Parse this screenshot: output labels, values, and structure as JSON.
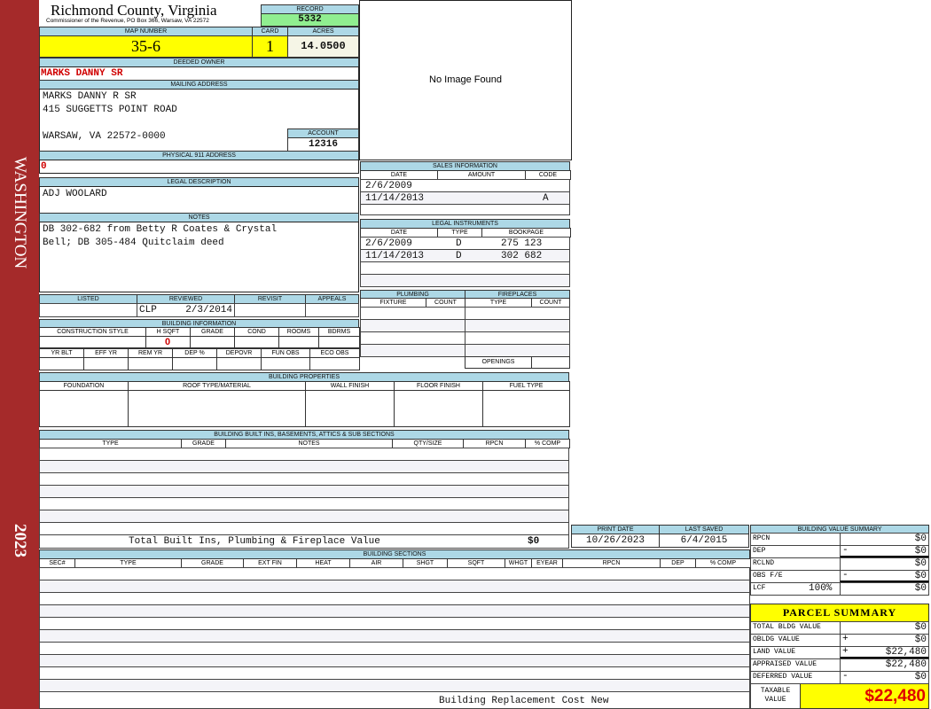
{
  "sidebar": {
    "district": "WASHINGTON",
    "year": "2023"
  },
  "header": {
    "title": "Richmond County, Virginia",
    "subtitle": "Commissioner of the Revenue, PO Box 366, Warsaw, VA 22572",
    "record_label": "RECORD",
    "record": "5332"
  },
  "parcel": {
    "map_label": "MAP NUMBER",
    "map": "35-6",
    "card_label": "CARD",
    "card": "1",
    "acres_label": "ACRES",
    "acres": "14.0500"
  },
  "owner": {
    "label": "DEEDED OWNER",
    "value": "MARKS DANNY SR"
  },
  "mailing": {
    "label": "MAILING ADDRESS",
    "lines": [
      "MARKS DANNY R SR",
      "415 SUGGETTS POINT ROAD",
      "WARSAW, VA 22572-0000"
    ],
    "account_label": "ACCOUNT",
    "account": "12316"
  },
  "physical": {
    "label": "PHYSICAL 911 ADDRESS",
    "value": "0"
  },
  "legal": {
    "label": "LEGAL DESCRIPTION",
    "value": "ADJ WOOLARD"
  },
  "notes": {
    "label": "NOTES",
    "lines": [
      "DB 302-682 from Betty R Coates & Crystal",
      "Bell; DB 305-484 Quitclaim deed"
    ]
  },
  "image": {
    "text": "No Image Found"
  },
  "review": {
    "headers": [
      "LISTED",
      "REVIEWED",
      "REVISIT",
      "APPEALS"
    ],
    "reviewed_by": "CLP",
    "reviewed_date": "2/3/2014"
  },
  "building_info": {
    "label": "BUILDING INFORMATION",
    "headers1": [
      "CONSTRUCTION STYLE",
      "H SQFT",
      "GRADE",
      "COND",
      "ROOMS",
      "BDRMS"
    ],
    "hsqft": "0",
    "headers2": [
      "YR BLT",
      "EFF YR",
      "REM YR",
      "DEP %",
      "DEPOVR",
      "FUN OBS",
      "ECO OBS"
    ]
  },
  "sales": {
    "label": "SALES INFORMATION",
    "headers": [
      "DATE",
      "AMOUNT",
      "CODE"
    ],
    "rows": [
      {
        "date": "2/6/2009",
        "amount": "",
        "code": ""
      },
      {
        "date": "11/14/2013",
        "amount": "",
        "code": "A"
      }
    ]
  },
  "instruments": {
    "label": "LEGAL INSTRUMENTS",
    "headers": [
      "DATE",
      "TYPE",
      "BOOKPAGE"
    ],
    "rows": [
      {
        "date": "2/6/2009",
        "type": "D",
        "bookpage": "275 123"
      },
      {
        "date": "11/14/2013",
        "type": "D",
        "bookpage": "302 682"
      }
    ]
  },
  "plumbing": {
    "label": "PLUMBING",
    "headers": [
      "FIXTURE",
      "COUNT"
    ]
  },
  "fireplaces": {
    "label": "FIREPLACES",
    "headers": [
      "TYPE",
      "COUNT"
    ],
    "openings_label": "OPENINGS"
  },
  "properties": {
    "label": "BUILDING PROPERTIES",
    "headers": [
      "FOUNDATION",
      "ROOF TYPE/MATERIAL",
      "WALL FINISH",
      "FLOOR FINISH",
      "FUEL TYPE"
    ]
  },
  "builtins": {
    "label": "BUILDING BUILT INS, BASEMENTS, ATTICS & SUB SECTIONS",
    "headers": [
      "TYPE",
      "GRADE",
      "NOTES",
      "QTY/SIZE",
      "RPCN",
      "% COMP"
    ],
    "total_label": "Total Built Ins, Plumbing & Fireplace Value",
    "total": "$0"
  },
  "dates": {
    "print_label": "PRINT DATE",
    "print": "10/26/2023",
    "saved_label": "LAST SAVED",
    "saved": "6/4/2015"
  },
  "sections": {
    "label": "BUILDING SECTIONS",
    "headers": [
      "SEC#",
      "TYPE",
      "GRADE",
      "EXT FIN",
      "HEAT",
      "AIR",
      "SHGT",
      "SQFT",
      "WHGT",
      "EYEAR",
      "RPCN",
      "DEP",
      "% COMP"
    ],
    "footer": "Building Replacement Cost New"
  },
  "value_summary": {
    "label": "BUILDING VALUE SUMMARY",
    "rows": [
      {
        "label": "RPCN",
        "op": "",
        "value": "$0"
      },
      {
        "label": "DEP",
        "op": "-",
        "value": "$0"
      },
      {
        "label": "RCLND",
        "op": "",
        "value": "$0"
      },
      {
        "label": "OBS F/E",
        "op": "-",
        "value": "$0"
      },
      {
        "label": "LCF",
        "pct": "100%",
        "op": "",
        "value": "$0"
      }
    ]
  },
  "parcel_summary": {
    "label": "PARCEL SUMMARY",
    "rows": [
      {
        "label": "TOTAL BLDG VALUE",
        "op": "",
        "value": "$0"
      },
      {
        "label": "OBLDG VALUE",
        "op": "+",
        "value": "$0"
      },
      {
        "label": "LAND VALUE",
        "op": "+",
        "value": "$22,480"
      },
      {
        "label": "APPRAISED VALUE",
        "op": "",
        "value": "$22,480"
      },
      {
        "label": "DEFERRED VALUE",
        "op": "-",
        "value": "$0"
      }
    ],
    "taxable_label": "TAXABLE VALUE",
    "taxable": "$22,480"
  },
  "colors": {
    "sidebar": "#a52a2a",
    "header": "#add8e6",
    "highlight": "#ffff00",
    "record": "#90ee90",
    "accent_red": "#d00000"
  }
}
